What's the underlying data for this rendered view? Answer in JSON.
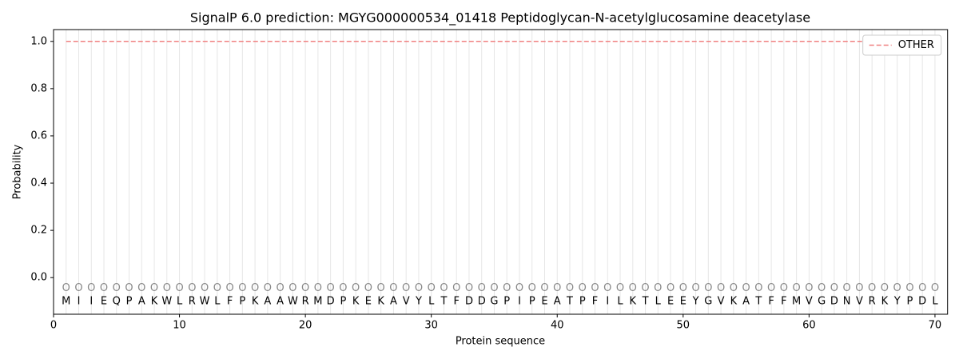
{
  "chart_data": {
    "type": "line",
    "title": "SignalP 6.0 prediction: MGYG000000534_01418 Peptidoglycan-N-acetylglucosamine deacetylase",
    "xlabel": "Protein sequence",
    "ylabel": "Probability",
    "x": [
      1,
      2,
      3,
      4,
      5,
      6,
      7,
      8,
      9,
      10,
      11,
      12,
      13,
      14,
      15,
      16,
      17,
      18,
      19,
      20,
      21,
      22,
      23,
      24,
      25,
      26,
      27,
      28,
      29,
      30,
      31,
      32,
      33,
      34,
      35,
      36,
      37,
      38,
      39,
      40,
      41,
      42,
      43,
      44,
      45,
      46,
      47,
      48,
      49,
      50,
      51,
      52,
      53,
      54,
      55,
      56,
      57,
      58,
      59,
      60,
      61,
      62,
      63,
      64,
      65,
      66,
      67,
      68,
      69,
      70
    ],
    "residues": [
      "M",
      "I",
      "I",
      "E",
      "Q",
      "P",
      "A",
      "K",
      "W",
      "L",
      "R",
      "W",
      "L",
      "F",
      "P",
      "K",
      "A",
      "A",
      "W",
      "R",
      "M",
      "D",
      "P",
      "K",
      "E",
      "K",
      "A",
      "V",
      "Y",
      "L",
      "T",
      "F",
      "D",
      "D",
      "G",
      "P",
      "I",
      "P",
      "E",
      "A",
      "T",
      "P",
      "F",
      "I",
      "L",
      "K",
      "T",
      "L",
      "E",
      "E",
      "Y",
      "G",
      "V",
      "K",
      "A",
      "T",
      "F",
      "F",
      "M",
      "V",
      "G",
      "D",
      "N",
      "V",
      "R",
      "K",
      "Y",
      "P",
      "D",
      "L"
    ],
    "predicted_labels": [
      "O",
      "O",
      "O",
      "O",
      "O",
      "O",
      "O",
      "O",
      "O",
      "O",
      "O",
      "O",
      "O",
      "O",
      "O",
      "O",
      "O",
      "O",
      "O",
      "O",
      "O",
      "O",
      "O",
      "O",
      "O",
      "O",
      "O",
      "O",
      "O",
      "O",
      "O",
      "O",
      "O",
      "O",
      "O",
      "O",
      "O",
      "O",
      "O",
      "O",
      "O",
      "O",
      "O",
      "O",
      "O",
      "O",
      "O",
      "O",
      "O",
      "O",
      "O",
      "O",
      "O",
      "O",
      "O",
      "O",
      "O",
      "O",
      "O",
      "O",
      "O",
      "O",
      "O",
      "O",
      "O",
      "O",
      "O",
      "O",
      "O",
      "O"
    ],
    "series": [
      {
        "name": "OTHER",
        "color": "#f08080",
        "dash": true,
        "values": [
          1,
          1,
          1,
          1,
          1,
          1,
          1,
          1,
          1,
          1,
          1,
          1,
          1,
          1,
          1,
          1,
          1,
          1,
          1,
          1,
          1,
          1,
          1,
          1,
          1,
          1,
          1,
          1,
          1,
          1,
          1,
          1,
          1,
          1,
          1,
          1,
          1,
          1,
          1,
          1,
          1,
          1,
          1,
          1,
          1,
          1,
          1,
          1,
          1,
          1,
          1,
          1,
          1,
          1,
          1,
          1,
          1,
          1,
          1,
          1,
          1,
          1,
          1,
          1,
          1,
          1,
          1,
          1,
          1,
          1
        ]
      }
    ],
    "xlim": [
      0,
      71
    ],
    "ylim": [
      -0.155,
      1.05
    ],
    "xticks": [
      0,
      10,
      20,
      30,
      40,
      50,
      60,
      70
    ],
    "yticks": [
      {
        "value": 0,
        "label": "0.0"
      },
      {
        "value": 0.2,
        "label": "0.2"
      },
      {
        "value": 0.4,
        "label": "0.4"
      },
      {
        "value": 0.6,
        "label": "0.6"
      },
      {
        "value": 0.8,
        "label": "0.8"
      },
      {
        "value": 1,
        "label": "1.0"
      }
    ],
    "legend": "upper right"
  }
}
